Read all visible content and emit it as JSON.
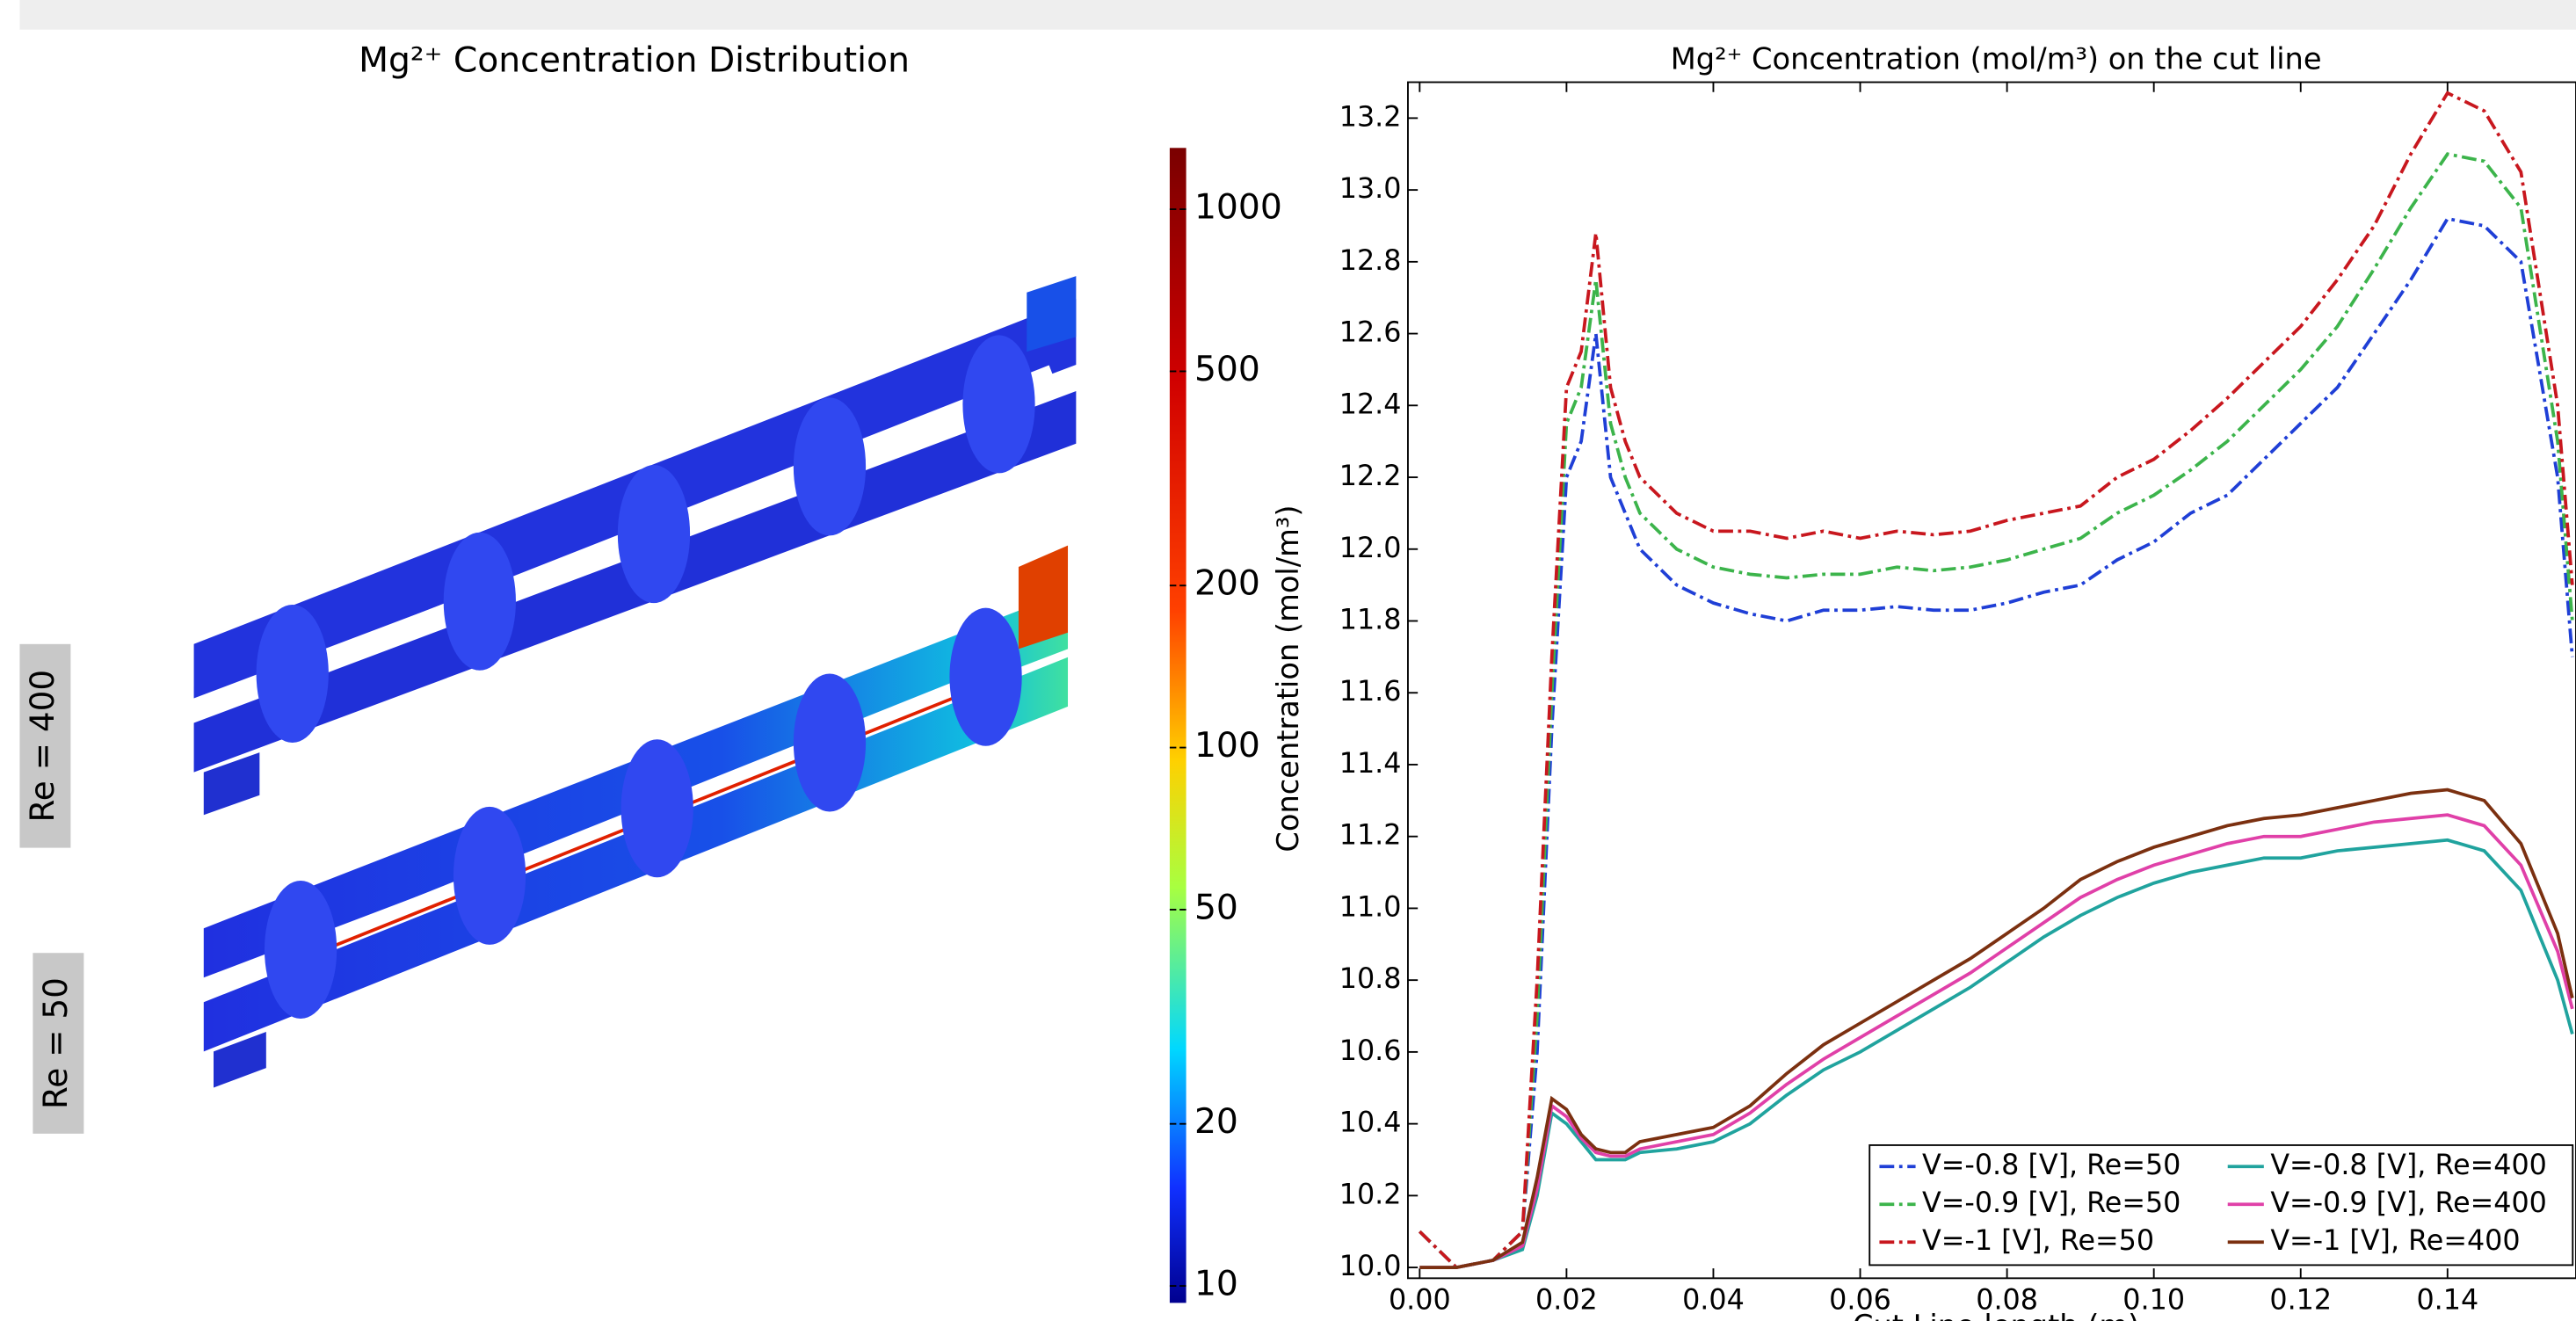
{
  "chart_data": [
    {
      "type": "image",
      "title": "Mg²⁺ Concentration Distribution",
      "panel_labels": [
        "Re = 400",
        "Re = 50"
      ],
      "colorbar": {
        "scale": "log",
        "lim": [
          9.3,
          1300
        ],
        "ticks": [
          10,
          20,
          50,
          100,
          200,
          500,
          1000
        ]
      }
    },
    {
      "type": "line",
      "title": "Mg²⁺ Concentration (mol/m³) on the cut line",
      "xlabel": "Cut Line length (m)",
      "ylabel": "Concentration (mol/m³)",
      "xlim": [
        -0.0016,
        0.1575
      ],
      "ylim": [
        9.97,
        13.3
      ],
      "xticks": [
        {
          "value": 0,
          "label": "0.00"
        },
        0.02,
        0.04,
        0.06,
        0.08,
        {
          "value": 0.1,
          "label": "0.10"
        },
        0.12,
        0.14
      ],
      "yticks": [
        {
          "value": 10,
          "label": "10.0"
        },
        10.2,
        10.4,
        10.6,
        10.8,
        {
          "value": 11,
          "label": "11.0"
        },
        11.2,
        11.4,
        11.6,
        11.8,
        {
          "value": 12,
          "label": "12.0"
        },
        12.2,
        12.4,
        12.6,
        12.8,
        {
          "value": 13,
          "label": "13.0"
        },
        13.2
      ],
      "grid": false,
      "legend": "lower right",
      "x": [
        0,
        0.005,
        0.01,
        0.014,
        0.016,
        0.018,
        0.02,
        0.022,
        0.024,
        0.026,
        0.028,
        0.03,
        0.035,
        0.04,
        0.045,
        0.05,
        0.055,
        0.06,
        0.065,
        0.07,
        0.075,
        0.08,
        0.085,
        0.09,
        0.095,
        0.1,
        0.105,
        0.11,
        0.115,
        0.12,
        0.125,
        0.13,
        0.135,
        0.14,
        0.145,
        0.15,
        0.155,
        0.157
      ],
      "series": [
        {
          "name": "V=-0.8 [V], Re=50",
          "color": "#1f3fd6",
          "linestyle": "-.",
          "values": [
            10.1,
            10.0,
            10.02,
            10.1,
            10.6,
            11.5,
            12.2,
            12.3,
            12.6,
            12.2,
            12.1,
            12.0,
            11.9,
            11.85,
            11.82,
            11.8,
            11.83,
            11.83,
            11.84,
            11.83,
            11.83,
            11.85,
            11.88,
            11.9,
            11.97,
            12.02,
            12.1,
            12.15,
            12.25,
            12.35,
            12.45,
            12.6,
            12.75,
            12.92,
            12.9,
            12.8,
            12.2,
            11.7
          ]
        },
        {
          "name": "V=-0.9 [V], Re=50",
          "color": "#3cb44b",
          "linestyle": "-.",
          "values": [
            10.1,
            10.0,
            10.02,
            10.1,
            10.7,
            11.6,
            12.35,
            12.45,
            12.75,
            12.35,
            12.2,
            12.1,
            12.0,
            11.95,
            11.93,
            11.92,
            11.93,
            11.93,
            11.95,
            11.94,
            11.95,
            11.97,
            12.0,
            12.03,
            12.1,
            12.15,
            12.22,
            12.3,
            12.4,
            12.5,
            12.62,
            12.78,
            12.95,
            13.1,
            13.08,
            12.95,
            12.3,
            11.8
          ]
        },
        {
          "name": "V=-1 [V], Re=50",
          "color": "#c8171e",
          "linestyle": "-.",
          "values": [
            10.1,
            10.0,
            10.02,
            10.1,
            10.8,
            11.7,
            12.45,
            12.55,
            12.88,
            12.45,
            12.3,
            12.2,
            12.1,
            12.05,
            12.05,
            12.03,
            12.05,
            12.03,
            12.05,
            12.04,
            12.05,
            12.08,
            12.1,
            12.12,
            12.2,
            12.25,
            12.33,
            12.42,
            12.52,
            12.62,
            12.75,
            12.9,
            13.1,
            13.27,
            13.22,
            13.05,
            12.4,
            11.9
          ]
        },
        {
          "name": "V=-0.8 [V], Re=400",
          "color": "#20a39e",
          "linestyle": "-",
          "values": [
            10.0,
            10.0,
            10.02,
            10.05,
            10.2,
            10.43,
            10.4,
            10.35,
            10.3,
            10.3,
            10.3,
            10.32,
            10.33,
            10.35,
            10.4,
            10.48,
            10.55,
            10.6,
            10.66,
            10.72,
            10.78,
            10.85,
            10.92,
            10.98,
            11.03,
            11.07,
            11.1,
            11.12,
            11.14,
            11.14,
            11.16,
            11.17,
            11.18,
            11.19,
            11.16,
            11.05,
            10.8,
            10.65
          ]
        },
        {
          "name": "V=-0.9 [V], Re=400",
          "color": "#e040a8",
          "linestyle": "-",
          "values": [
            10.0,
            10.0,
            10.02,
            10.06,
            10.22,
            10.45,
            10.42,
            10.36,
            10.32,
            10.31,
            10.31,
            10.33,
            10.35,
            10.37,
            10.43,
            10.51,
            10.58,
            10.64,
            10.7,
            10.76,
            10.82,
            10.89,
            10.96,
            11.03,
            11.08,
            11.12,
            11.15,
            11.18,
            11.2,
            11.2,
            11.22,
            11.24,
            11.25,
            11.26,
            11.23,
            11.12,
            10.88,
            10.72
          ]
        },
        {
          "name": "V=-1 [V], Re=400",
          "color": "#7b3010",
          "linestyle": "-",
          "values": [
            10.0,
            10.0,
            10.02,
            10.07,
            10.25,
            10.47,
            10.44,
            10.37,
            10.33,
            10.32,
            10.32,
            10.35,
            10.37,
            10.39,
            10.45,
            10.54,
            10.62,
            10.68,
            10.74,
            10.8,
            10.86,
            10.93,
            11.0,
            11.08,
            11.13,
            11.17,
            11.2,
            11.23,
            11.25,
            11.26,
            11.28,
            11.3,
            11.32,
            11.33,
            11.3,
            11.18,
            10.93,
            10.75
          ]
        }
      ]
    }
  ]
}
